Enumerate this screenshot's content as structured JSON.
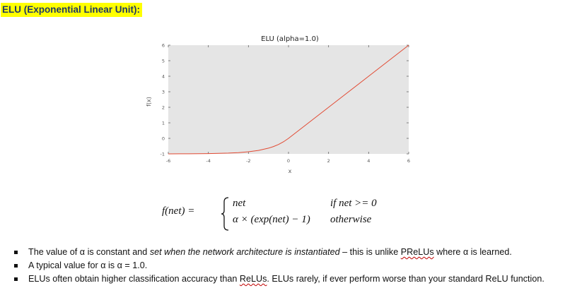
{
  "heading": "ELU (Exponential Linear Unit):",
  "chart_data": {
    "type": "line",
    "title": "ELU (alpha=1.0)",
    "xlabel": "x",
    "ylabel": "f(x)",
    "xlim": [
      -6,
      6
    ],
    "ylim": [
      -1,
      6
    ],
    "x_ticks": [
      "-6",
      "-4",
      "-2",
      "0",
      "2",
      "4",
      "6"
    ],
    "y_ticks": [
      "-1",
      "0",
      "1",
      "2",
      "3",
      "4",
      "5",
      "6"
    ],
    "grid": false,
    "background": "#e5e5e5",
    "line_color": "#e24a33",
    "series": [
      {
        "x": [
          -6,
          -5,
          -4,
          -3,
          -2.5,
          -2,
          -1.5,
          -1,
          -0.75,
          -0.5,
          -0.25,
          0,
          1,
          2,
          3,
          4,
          5,
          6
        ],
        "values": [
          -0.998,
          -0.993,
          -0.982,
          -0.95,
          -0.918,
          -0.865,
          -0.777,
          -0.632,
          -0.528,
          -0.393,
          -0.221,
          0,
          1,
          2,
          3,
          4,
          5,
          6
        ]
      }
    ]
  },
  "formula": {
    "lhs": "f(net) =",
    "case1_expr": "net",
    "case1_cond": "if net >= 0",
    "case2_expr": "α × (exp(net) − 1)",
    "case2_cond": "otherwise"
  },
  "bullets": {
    "b1_a": "The value of α is constant and ",
    "b1_b": "set when the network architecture is instantiated",
    "b1_c": " – this is unlike ",
    "b1_d": "PReLUs",
    "b1_e": " where α is learned.",
    "b2": "A typical value for α is α = 1.0.",
    "b3_a": "ELUs often obtain higher classification accuracy than ",
    "b3_b": "ReLUs",
    "b3_c": ". ELUs rarely, if ever perform worse than your standard ReLU function."
  }
}
